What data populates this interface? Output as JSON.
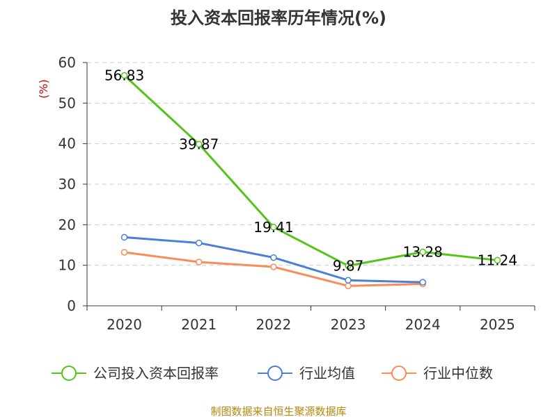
{
  "chart_data": {
    "type": "line",
    "title": "投入资本回报率历年情况(%)",
    "ylabel": "(%)",
    "xlabel": "",
    "categories": [
      "2020",
      "2021",
      "2022",
      "2023",
      "2024",
      "2025"
    ],
    "ylim": [
      0,
      60
    ],
    "yticks": [
      0,
      10,
      20,
      30,
      40,
      50,
      60
    ],
    "grid": true,
    "legend": "bottom",
    "series": [
      {
        "name": "公司投入资本回报率",
        "color": "#52c41a",
        "values": [
          56.83,
          39.87,
          19.41,
          9.87,
          13.28,
          11.24
        ],
        "labels": [
          "56.83",
          "39.87",
          "19.41",
          "9.87",
          "13.28",
          "11.24"
        ]
      },
      {
        "name": "行业均值",
        "color": "#4a7fd9",
        "values": [
          16.9,
          15.5,
          11.9,
          6.3,
          5.8,
          null
        ]
      },
      {
        "name": "行业中位数",
        "color": "#f98c58",
        "values": [
          13.2,
          10.8,
          9.6,
          4.9,
          5.4,
          null
        ]
      }
    ]
  },
  "footer": {
    "source": "制图数据来自恒生聚源数据库"
  }
}
